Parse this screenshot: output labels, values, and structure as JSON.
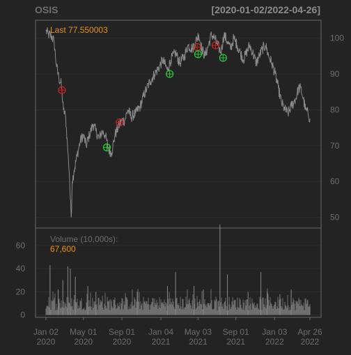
{
  "header": {
    "symbol": "OSIS",
    "date_range": "[2020-01-02/2022-04-26]"
  },
  "colors": {
    "background": "#232323",
    "panel_border": "#6a6a6a",
    "grid": "#2e2e2e",
    "price_line": "#8a8a8a",
    "text_muted": "#6e6e6e",
    "text_header": "#8c8c8c",
    "accent_orange": "#e8911b",
    "sell_marker": "#c72828",
    "buy_marker": "#2ecc3a",
    "volume_bar": "#888888"
  },
  "chart_data": [
    {
      "type": "line",
      "name": "price",
      "title": "OSIS",
      "last_label": "Last 77.550003",
      "ylim": [
        47,
        105
      ],
      "y_ticks": [
        50,
        60,
        70,
        80,
        90,
        100
      ],
      "y_tick_labels": [
        "50",
        "60",
        "70",
        "80",
        "90",
        "100"
      ],
      "grid": true,
      "x_tick_labels": [
        {
          "date": "2020-01-02",
          "line1": "Jan 02",
          "line2": "2020"
        },
        {
          "date": "2020-05-01",
          "line1": "May 01",
          "line2": "2020"
        },
        {
          "date": "2020-09-01",
          "line1": "Sep 01",
          "line2": "2020"
        },
        {
          "date": "2021-01-04",
          "line1": "Jan 04",
          "line2": "2021"
        },
        {
          "date": "2021-05-03",
          "line1": "May 03",
          "line2": "2021"
        },
        {
          "date": "2021-09-01",
          "line1": "Sep 01",
          "line2": "2021"
        },
        {
          "date": "2022-01-03",
          "line1": "Jan 03",
          "line2": "2022"
        },
        {
          "date": "2022-04-26",
          "line1": "Apr 26",
          "line2": "2022"
        }
      ],
      "series": [
        {
          "anchors": [
            [
              "2020-01-02",
              102
            ],
            [
              "2020-01-10",
              101
            ],
            [
              "2020-01-20",
              100.5
            ],
            [
              "2020-01-28",
              99
            ],
            [
              "2020-02-05",
              92
            ],
            [
              "2020-02-12",
              89
            ],
            [
              "2020-02-20",
              87
            ],
            [
              "2020-02-27",
              80
            ],
            [
              "2020-03-05",
              78
            ],
            [
              "2020-03-11",
              70
            ],
            [
              "2020-03-17",
              62
            ],
            [
              "2020-03-20",
              55
            ],
            [
              "2020-03-23",
              50
            ],
            [
              "2020-03-26",
              60
            ],
            [
              "2020-04-01",
              63
            ],
            [
              "2020-04-10",
              67
            ],
            [
              "2020-04-20",
              71
            ],
            [
              "2020-04-30",
              73
            ],
            [
              "2020-05-10",
              70
            ],
            [
              "2020-05-20",
              73
            ],
            [
              "2020-06-01",
              76
            ],
            [
              "2020-06-10",
              74
            ],
            [
              "2020-06-20",
              72
            ],
            [
              "2020-06-30",
              74
            ],
            [
              "2020-07-10",
              73
            ],
            [
              "2020-07-20",
              69
            ],
            [
              "2020-07-30",
              68
            ],
            [
              "2020-08-10",
              73
            ],
            [
              "2020-08-20",
              75
            ],
            [
              "2020-08-31",
              77
            ],
            [
              "2020-09-10",
              77
            ],
            [
              "2020-09-20",
              80
            ],
            [
              "2020-10-01",
              78
            ],
            [
              "2020-10-15",
              79
            ],
            [
              "2020-10-30",
              81
            ],
            [
              "2020-11-10",
              84
            ],
            [
              "2020-11-20",
              86
            ],
            [
              "2020-12-01",
              88
            ],
            [
              "2020-12-15",
              90
            ],
            [
              "2020-12-30",
              92
            ],
            [
              "2021-01-10",
              94
            ],
            [
              "2021-01-25",
              91
            ],
            [
              "2021-02-05",
              94
            ],
            [
              "2021-02-20",
              96
            ],
            [
              "2021-03-05",
              93
            ],
            [
              "2021-03-20",
              95
            ],
            [
              "2021-04-01",
              98
            ],
            [
              "2021-04-15",
              97
            ],
            [
              "2021-04-25",
              99
            ],
            [
              "2021-05-05",
              101
            ],
            [
              "2021-05-15",
              97
            ],
            [
              "2021-05-25",
              95
            ],
            [
              "2021-06-05",
              98
            ],
            [
              "2021-06-15",
              101
            ],
            [
              "2021-06-25",
              100
            ],
            [
              "2021-07-05",
              98
            ],
            [
              "2021-07-15",
              96
            ],
            [
              "2021-07-25",
              101
            ],
            [
              "2021-08-05",
              99
            ],
            [
              "2021-08-15",
              97
            ],
            [
              "2021-08-25",
              100
            ],
            [
              "2021-09-05",
              98
            ],
            [
              "2021-09-15",
              96
            ],
            [
              "2021-09-25",
              94
            ],
            [
              "2021-10-05",
              96
            ],
            [
              "2021-10-15",
              98
            ],
            [
              "2021-10-25",
              96
            ],
            [
              "2021-11-05",
              93
            ],
            [
              "2021-11-15",
              95
            ],
            [
              "2021-11-25",
              97
            ],
            [
              "2021-12-05",
              98
            ],
            [
              "2021-12-15",
              95
            ],
            [
              "2021-12-25",
              93
            ],
            [
              "2022-01-05",
              90
            ],
            [
              "2022-01-15",
              86
            ],
            [
              "2022-01-25",
              82
            ],
            [
              "2022-02-05",
              80
            ],
            [
              "2022-02-15",
              79
            ],
            [
              "2022-02-25",
              81
            ],
            [
              "2022-03-05",
              82
            ],
            [
              "2022-03-15",
              84
            ],
            [
              "2022-03-20",
              86
            ],
            [
              "2022-03-28",
              86
            ],
            [
              "2022-04-05",
              83
            ],
            [
              "2022-04-12",
              80
            ],
            [
              "2022-04-20",
              79
            ],
            [
              "2022-04-26",
              77.55
            ]
          ]
        }
      ],
      "markers": [
        {
          "kind": "sell",
          "date": "2020-02-22",
          "value": 85.5
        },
        {
          "kind": "buy",
          "date": "2020-07-15",
          "value": 69.5
        },
        {
          "kind": "sell",
          "date": "2020-08-25",
          "value": 76.5
        },
        {
          "kind": "buy",
          "date": "2021-02-01",
          "value": 90
        },
        {
          "kind": "sell",
          "date": "2021-04-30",
          "value": 97.5
        },
        {
          "kind": "buy",
          "date": "2021-05-03",
          "value": 95.5
        },
        {
          "kind": "sell",
          "date": "2021-06-28",
          "value": 98
        },
        {
          "kind": "buy",
          "date": "2021-07-22",
          "value": 94.5
        }
      ]
    },
    {
      "type": "bar",
      "name": "volume",
      "label": "Volume (10,000s):",
      "last_value_label": "67,600",
      "ylim": [
        -2,
        75
      ],
      "y_ticks": [
        0,
        20,
        40,
        60
      ],
      "y_tick_labels": [
        "0",
        "20",
        "40",
        "60"
      ],
      "grid": true,
      "spikes": [
        [
          "2020-01-15",
          43
        ],
        [
          "2020-02-10",
          22
        ],
        [
          "2020-02-25",
          30
        ],
        [
          "2020-03-12",
          42
        ],
        [
          "2020-03-20",
          40
        ],
        [
          "2020-04-05",
          33
        ],
        [
          "2020-05-15",
          25
        ],
        [
          "2020-06-10",
          20
        ],
        [
          "2020-10-20",
          20
        ],
        [
          "2021-01-25",
          25
        ],
        [
          "2021-02-20",
          37
        ],
        [
          "2021-04-20",
          25
        ],
        [
          "2021-05-20",
          22
        ],
        [
          "2021-07-12",
          78
        ],
        [
          "2021-08-05",
          35
        ],
        [
          "2021-10-10",
          20
        ],
        [
          "2021-11-20",
          37
        ],
        [
          "2021-12-10",
          20
        ],
        [
          "2022-01-20",
          18
        ],
        [
          "2022-02-25",
          22
        ],
        [
          "2022-04-26",
          6.76
        ]
      ],
      "baseline_range": [
        4,
        16
      ]
    }
  ]
}
